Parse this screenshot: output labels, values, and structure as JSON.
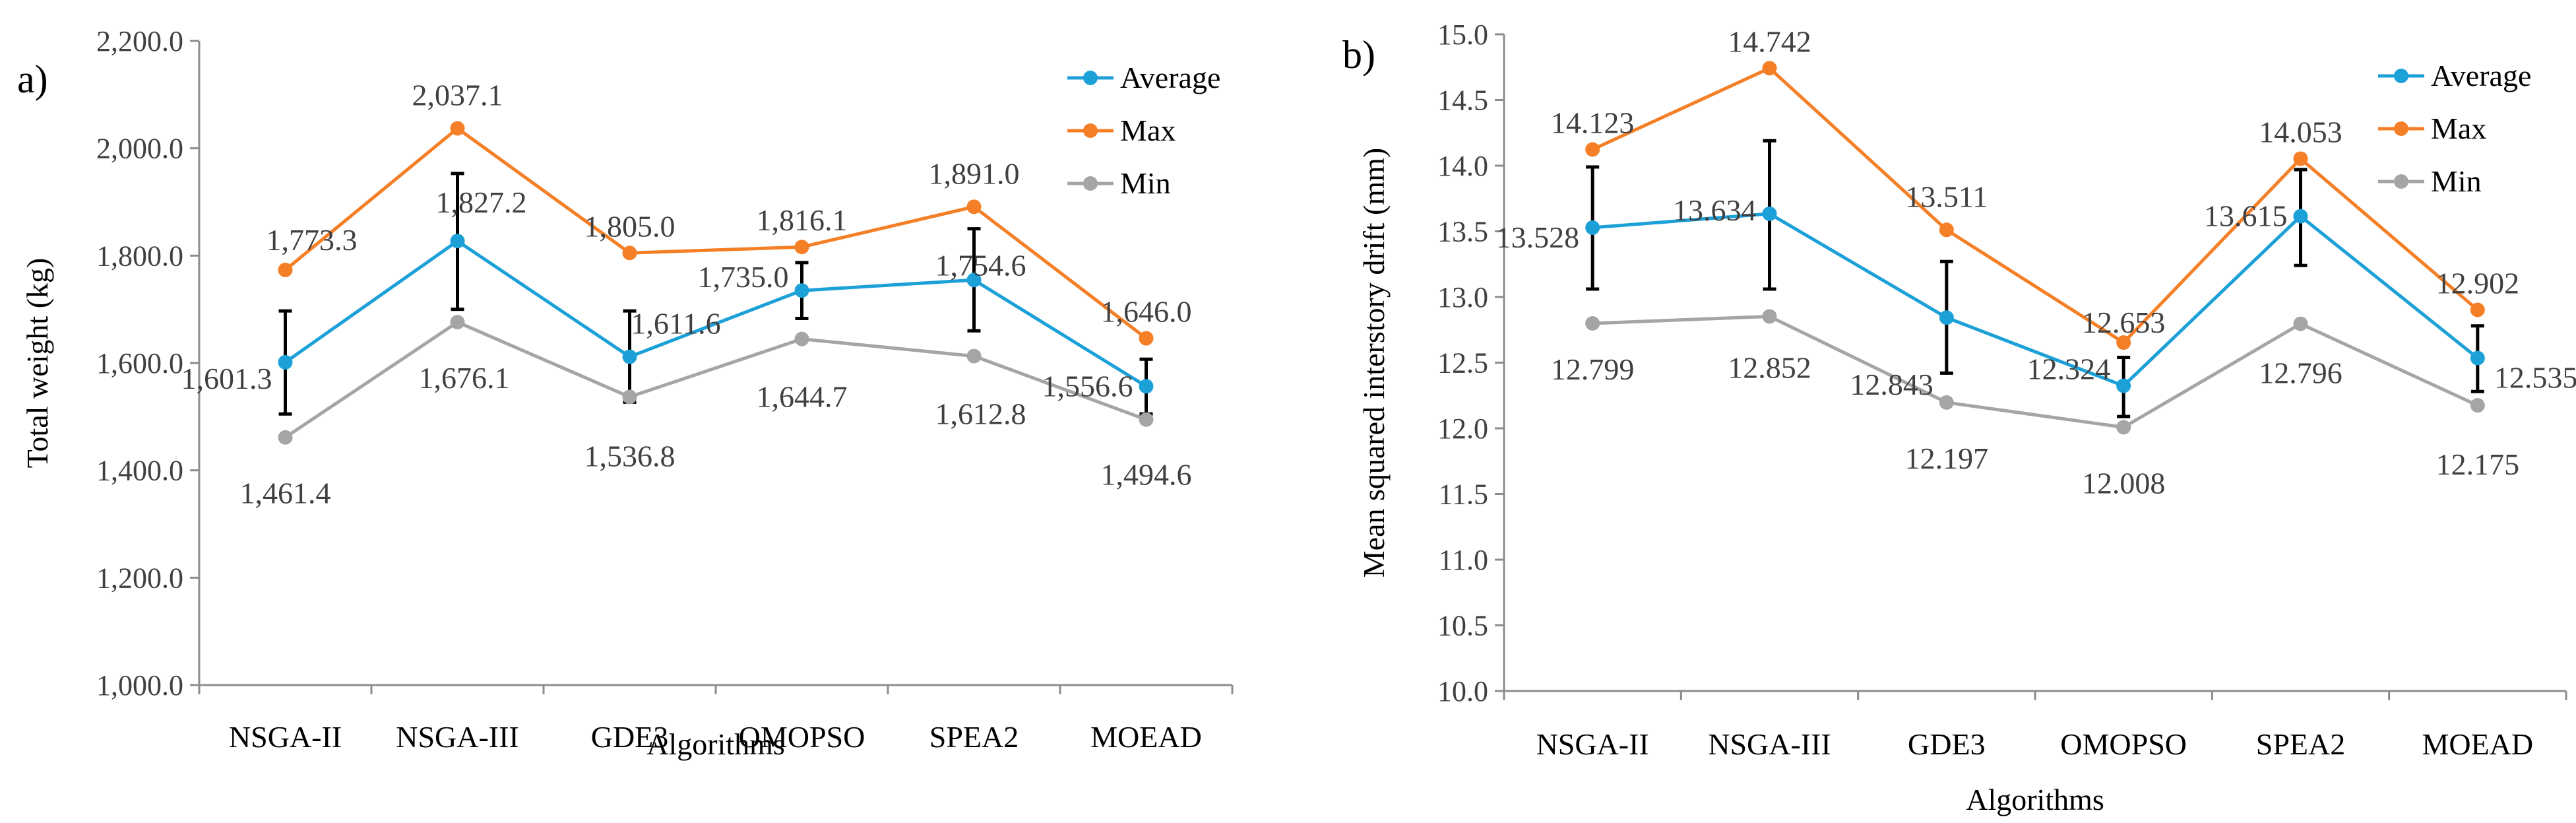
{
  "chart_data": [
    {
      "type": "line",
      "panel_label": "a)",
      "categories": [
        "NSGA-II",
        "NSGA-III",
        "GDE3",
        "OMOPSO",
        "SPEA2",
        "MOEAD"
      ],
      "xlabel": "Algorithms",
      "ylabel": "Total weight (kg)",
      "ylim": [
        1000,
        2200
      ],
      "ytick_step": 200,
      "ytick_labels": [
        "1,000.0",
        "1,200.0",
        "1,400.0",
        "1,600.0",
        "1,800.0",
        "2,000.0",
        "2,200.0"
      ],
      "grid": false,
      "legend_position": "top-right",
      "series": [
        {
          "name": "Average",
          "color": "#1ca0d8",
          "values": [
            1601.3,
            1827.2,
            1611.6,
            1735.0,
            1754.6,
            1556.6
          ],
          "labels": [
            "1,601.3",
            "1,827.2",
            "1,611.6",
            "1,735.0",
            "1,754.6",
            "1,556.6"
          ],
          "error_bars": [
            [
              1505,
              1697
            ],
            [
              1700,
              1953
            ],
            [
              1527,
              1697
            ],
            [
              1683,
              1787
            ],
            [
              1660,
              1850
            ],
            [
              1505,
              1607
            ]
          ]
        },
        {
          "name": "Max",
          "color": "#f47f26",
          "values": [
            1773.3,
            2037.1,
            1805.0,
            1816.1,
            1891.0,
            1646.0
          ],
          "labels": [
            "1,773.3",
            "2,037.1",
            "1,805.0",
            "1,816.1",
            "1,891.0",
            "1,646.0"
          ]
        },
        {
          "name": "Min",
          "color": "#a5a5a5",
          "values": [
            1461.4,
            1676.1,
            1536.8,
            1644.7,
            1612.8,
            1494.6
          ],
          "labels": [
            "1,461.4",
            "1,676.1",
            "1,536.8",
            "1,644.7",
            "1,612.8",
            "1,494.6"
          ]
        }
      ]
    },
    {
      "type": "line",
      "panel_label": "b)",
      "categories": [
        "NSGA-II",
        "NSGA-III",
        "GDE3",
        "OMOPSO",
        "SPEA2",
        "MOEAD"
      ],
      "xlabel": "Algorithms",
      "ylabel": "Mean squared interstory drift (mm)",
      "ylim": [
        10.0,
        15.0
      ],
      "ytick_step": 0.5,
      "ytick_labels": [
        "10.0",
        "10.5",
        "11.0",
        "11.5",
        "12.0",
        "12.5",
        "13.0",
        "13.5",
        "14.0",
        "14.5",
        "15.0"
      ],
      "grid": false,
      "legend_position": "top-right",
      "series": [
        {
          "name": "Average",
          "color": "#1ca0d8",
          "values": [
            13.528,
            13.634,
            12.843,
            12.324,
            13.615,
            12.535
          ],
          "labels": [
            "13.528",
            "13.634",
            "12.843",
            "12.324",
            "13.615",
            "12.535"
          ],
          "error_bars": [
            [
              13.06,
              13.99
            ],
            [
              13.06,
              14.19
            ],
            [
              12.42,
              13.27
            ],
            [
              12.09,
              12.54
            ],
            [
              13.24,
              13.97
            ],
            [
              12.28,
              12.78
            ]
          ]
        },
        {
          "name": "Max",
          "color": "#f47f26",
          "values": [
            14.123,
            14.742,
            13.511,
            12.653,
            14.053,
            12.902
          ],
          "labels": [
            "14.123",
            "14.742",
            "13.511",
            "12.653",
            "14.053",
            "12.902"
          ]
        },
        {
          "name": "Min",
          "color": "#a5a5a5",
          "values": [
            12.799,
            12.852,
            12.197,
            12.008,
            12.796,
            12.175
          ],
          "labels": [
            "12.799",
            "12.852",
            "12.197",
            "12.008",
            "12.796",
            "12.175"
          ]
        }
      ]
    }
  ]
}
